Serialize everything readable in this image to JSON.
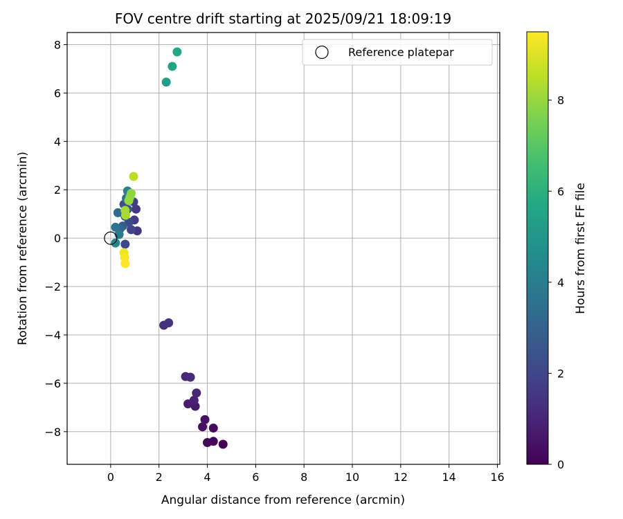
{
  "chart_data": {
    "type": "scatter",
    "title": "FOV centre drift starting at 2025/09/21 18:09:19",
    "xlabel": "Angular distance from reference (arcmin)",
    "ylabel": "Rotation from reference (arcmin)",
    "xlim": [
      -1.8,
      16.1
    ],
    "ylim": [
      -9.35,
      8.5
    ],
    "xticks": [
      0,
      2,
      4,
      6,
      8,
      10,
      12,
      14,
      16
    ],
    "yticks": [
      -8,
      -6,
      -4,
      -2,
      0,
      2,
      4,
      6,
      8
    ],
    "grid": true,
    "legend": {
      "position": "top-right",
      "entries": [
        "Reference platepar"
      ]
    },
    "reference_point": {
      "x": 0.0,
      "y": 0.0,
      "label": "Reference platepar"
    },
    "colorbar": {
      "label": "Hours from first FF file",
      "range": [
        0,
        9.5
      ],
      "ticks": [
        0,
        2,
        4,
        6,
        8
      ],
      "colormap": "viridis"
    },
    "points": [
      {
        "x": 4.65,
        "y": -8.52,
        "hours": 0.0
      },
      {
        "x": 4.0,
        "y": -8.45,
        "hours": 0.1
      },
      {
        "x": 4.25,
        "y": -8.4,
        "hours": 0.2
      },
      {
        "x": 4.25,
        "y": -7.85,
        "hours": 0.3
      },
      {
        "x": 3.8,
        "y": -7.8,
        "hours": 0.4
      },
      {
        "x": 3.9,
        "y": -7.5,
        "hours": 0.5
      },
      {
        "x": 3.5,
        "y": -6.95,
        "hours": 0.7
      },
      {
        "x": 3.2,
        "y": -6.85,
        "hours": 0.8
      },
      {
        "x": 3.45,
        "y": -6.7,
        "hours": 0.9
      },
      {
        "x": 3.55,
        "y": -6.4,
        "hours": 1.0
      },
      {
        "x": 3.1,
        "y": -5.72,
        "hours": 1.1
      },
      {
        "x": 3.3,
        "y": -5.75,
        "hours": 1.2
      },
      {
        "x": 2.2,
        "y": -3.6,
        "hours": 1.3
      },
      {
        "x": 2.4,
        "y": -3.5,
        "hours": 1.4
      },
      {
        "x": 1.1,
        "y": 0.3,
        "hours": 1.5
      },
      {
        "x": 1.05,
        "y": 1.2,
        "hours": 1.6
      },
      {
        "x": 0.98,
        "y": 0.75,
        "hours": 1.7
      },
      {
        "x": 0.95,
        "y": 1.5,
        "hours": 1.8
      },
      {
        "x": 0.85,
        "y": 0.35,
        "hours": 1.9
      },
      {
        "x": 0.6,
        "y": -0.25,
        "hours": 2.0
      },
      {
        "x": 0.75,
        "y": 0.65,
        "hours": 2.1
      },
      {
        "x": 0.55,
        "y": 1.4,
        "hours": 2.3
      },
      {
        "x": 0.7,
        "y": 1.2,
        "hours": 2.5
      },
      {
        "x": 0.5,
        "y": 0.5,
        "hours": 2.7
      },
      {
        "x": 0.6,
        "y": 0.9,
        "hours": 2.9
      },
      {
        "x": 0.4,
        "y": 0.4,
        "hours": 3.1
      },
      {
        "x": 0.3,
        "y": 1.05,
        "hours": 3.3
      },
      {
        "x": 0.65,
        "y": 1.65,
        "hours": 3.5
      },
      {
        "x": 0.2,
        "y": 0.45,
        "hours": 3.7
      },
      {
        "x": 0.35,
        "y": 0.15,
        "hours": 3.9
      },
      {
        "x": 0.7,
        "y": 1.95,
        "hours": 4.1
      },
      {
        "x": 0.2,
        "y": -0.2,
        "hours": 4.3
      },
      {
        "x": 2.3,
        "y": 6.45,
        "hours": 5.3
      },
      {
        "x": 2.55,
        "y": 7.1,
        "hours": 5.5
      },
      {
        "x": 2.75,
        "y": 7.7,
        "hours": 5.6
      },
      {
        "x": 0.8,
        "y": 1.7,
        "hours": 7.8
      },
      {
        "x": 0.85,
        "y": 1.85,
        "hours": 7.9
      },
      {
        "x": 0.75,
        "y": 1.55,
        "hours": 8.0
      },
      {
        "x": 0.6,
        "y": 1.15,
        "hours": 8.2
      },
      {
        "x": 0.62,
        "y": 0.95,
        "hours": 8.3
      },
      {
        "x": 0.95,
        "y": 2.55,
        "hours": 8.5
      },
      {
        "x": 0.55,
        "y": -0.6,
        "hours": 9.3
      },
      {
        "x": 0.58,
        "y": -0.8,
        "hours": 9.4
      },
      {
        "x": 0.6,
        "y": -1.05,
        "hours": 9.5
      }
    ]
  }
}
